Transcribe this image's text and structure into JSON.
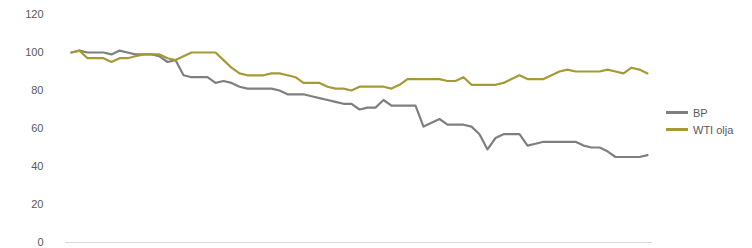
{
  "chart_data": {
    "type": "line",
    "categories": [
      null,
      null,
      null,
      null,
      null,
      null,
      null,
      null,
      null,
      null,
      null,
      null,
      null,
      null,
      null,
      null,
      null,
      null,
      null,
      null,
      null,
      null,
      null,
      null,
      null,
      null,
      null,
      null,
      null,
      null,
      null,
      null,
      null,
      null,
      null,
      null,
      null,
      null,
      null,
      null,
      null,
      null,
      null,
      null,
      null,
      null,
      null,
      null,
      null,
      null,
      null,
      null,
      null,
      null,
      null,
      null,
      null,
      null,
      null,
      null,
      null,
      null,
      null,
      null,
      null,
      null,
      null,
      null,
      null,
      null,
      null,
      null,
      null
    ],
    "series": [
      {
        "name": "BP",
        "color": "#7f7f7f",
        "values": [
          100,
          101,
          100,
          100,
          100,
          99,
          101,
          100,
          99,
          99,
          99,
          98,
          95,
          96,
          88,
          87,
          87,
          87,
          84,
          85,
          84,
          82,
          81,
          81,
          81,
          81,
          80,
          78,
          78,
          78,
          77,
          76,
          75,
          74,
          73,
          73,
          70,
          71,
          71,
          75,
          72,
          72,
          72,
          72,
          61,
          63,
          65,
          62,
          62,
          62,
          61,
          57,
          49,
          55,
          57,
          57,
          57,
          51,
          52,
          53,
          53,
          53,
          53,
          53,
          51,
          50,
          50,
          48,
          45,
          45,
          45,
          45,
          46
        ]
      },
      {
        "name": "WTI olja",
        "color": "#a59a36",
        "values": [
          100,
          101,
          97,
          97,
          97,
          95,
          97,
          97,
          98,
          99,
          99,
          99,
          97,
          96,
          98,
          100,
          100,
          100,
          100,
          96,
          92,
          89,
          88,
          88,
          88,
          89,
          89,
          88,
          87,
          84,
          84,
          84,
          82,
          81,
          81,
          80,
          82,
          82,
          82,
          82,
          81,
          83,
          86,
          86,
          86,
          86,
          86,
          85,
          85,
          87,
          83,
          83,
          83,
          83,
          84,
          86,
          88,
          86,
          86,
          86,
          88,
          90,
          91,
          90,
          90,
          90,
          90,
          91,
          90,
          89,
          92,
          91,
          89
        ]
      }
    ],
    "ylim": [
      0,
      120
    ],
    "yticks": [
      0,
      20,
      40,
      60,
      80,
      100,
      120
    ],
    "grid": false,
    "legend": "right",
    "tick_labels": "y"
  }
}
